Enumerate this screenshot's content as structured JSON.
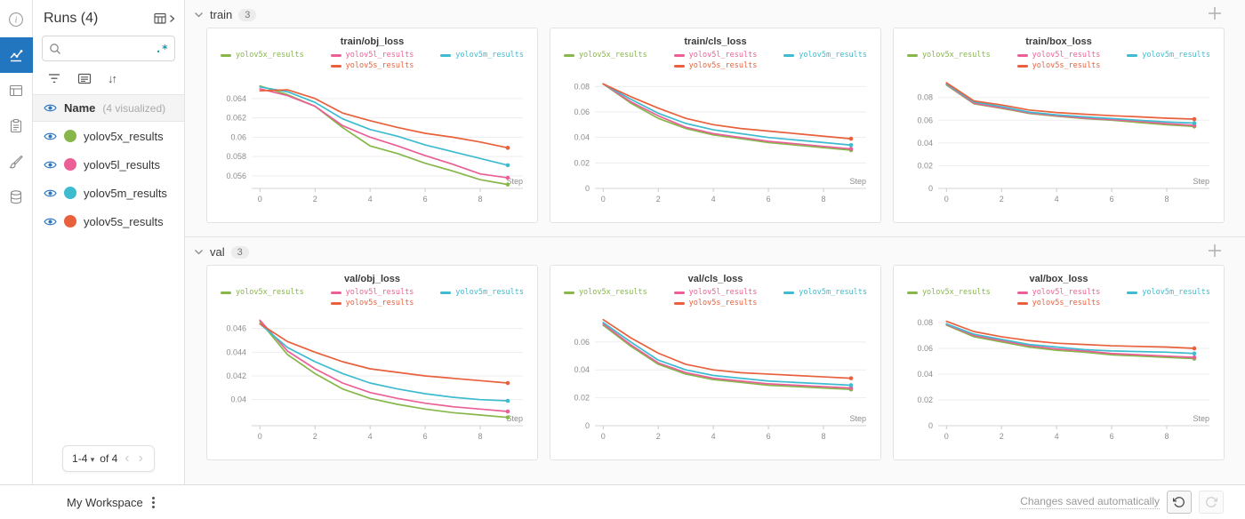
{
  "rail": {
    "items": [
      "info",
      "charts",
      "panels",
      "notes",
      "brush",
      "data"
    ]
  },
  "sidebar": {
    "title": "Runs (4)",
    "search": {
      "value": "",
      "placeholder": "",
      "regex_label": ".*"
    },
    "name_header": {
      "label": "Name",
      "suffix": "(4 visualized)"
    },
    "runs": [
      {
        "label": "yolov5x_results",
        "color": "#87b74a"
      },
      {
        "label": "yolov5l_results",
        "color": "#ec5f96"
      },
      {
        "label": "yolov5m_results",
        "color": "#3dbbcf"
      },
      {
        "label": "yolov5s_results",
        "color": "#e8603c"
      }
    ],
    "pagination": {
      "range": "1-4",
      "of": "of 4",
      "prev": "‹",
      "next": "›"
    }
  },
  "sections": [
    {
      "label": "train",
      "count": "3"
    },
    {
      "label": "val",
      "count": "3"
    }
  ],
  "footer": {
    "workspace": "My Workspace",
    "status": "Changes saved automatically"
  },
  "accent_color": "#2276c0",
  "chart_data": [
    {
      "type": "line",
      "title": "train/obj_loss",
      "xlabel": "Step",
      "x": [
        0,
        1,
        2,
        3,
        4,
        5,
        6,
        7,
        8,
        9
      ],
      "xlim": [
        -0.3,
        9.55
      ],
      "xticks": [
        0,
        2,
        4,
        6,
        8
      ],
      "ylim": [
        0.0547,
        0.0661
      ],
      "yticks": [
        0.056,
        0.058,
        0.06,
        0.062,
        0.064
      ],
      "grid": true,
      "legend_position": "top",
      "series": [
        {
          "name": "yolov5x_results",
          "color": "#87b74a",
          "values": [
            0.0653,
            0.0644,
            0.0632,
            0.061,
            0.0591,
            0.0583,
            0.0573,
            0.0565,
            0.0556,
            0.0551
          ]
        },
        {
          "name": "yolov5l_results",
          "color": "#ec5f96",
          "values": [
            0.065,
            0.0643,
            0.0632,
            0.0612,
            0.06,
            0.0591,
            0.0581,
            0.0572,
            0.0562,
            0.0558
          ]
        },
        {
          "name": "yolov5m_results",
          "color": "#3dbbcf",
          "values": [
            0.0652,
            0.0647,
            0.0636,
            0.0619,
            0.0608,
            0.0601,
            0.0592,
            0.0585,
            0.0578,
            0.0571
          ]
        },
        {
          "name": "yolov5s_results",
          "color": "#e8603c",
          "values": [
            0.0648,
            0.0649,
            0.064,
            0.0625,
            0.0617,
            0.061,
            0.0604,
            0.06,
            0.0595,
            0.0589
          ]
        }
      ]
    },
    {
      "type": "line",
      "title": "train/cls_loss",
      "xlabel": "Step",
      "x": [
        0,
        1,
        2,
        3,
        4,
        5,
        6,
        7,
        8,
        9
      ],
      "xlim": [
        -0.3,
        9.55
      ],
      "xticks": [
        0,
        2,
        4,
        6,
        8
      ],
      "ylim": [
        0,
        0.0865
      ],
      "yticks": [
        0,
        0.02,
        0.04,
        0.06,
        0.08
      ],
      "grid": true,
      "legend_position": "top",
      "series": [
        {
          "name": "yolov5x_results",
          "color": "#87b74a",
          "values": [
            0.082,
            0.067,
            0.055,
            0.047,
            0.042,
            0.039,
            0.036,
            0.034,
            0.032,
            0.03
          ]
        },
        {
          "name": "yolov5l_results",
          "color": "#ec5f96",
          "values": [
            0.082,
            0.068,
            0.057,
            0.048,
            0.043,
            0.04,
            0.037,
            0.035,
            0.033,
            0.031
          ]
        },
        {
          "name": "yolov5m_results",
          "color": "#3dbbcf",
          "values": [
            0.082,
            0.07,
            0.059,
            0.051,
            0.046,
            0.043,
            0.04,
            0.038,
            0.036,
            0.034
          ]
        },
        {
          "name": "yolov5s_results",
          "color": "#e8603c",
          "values": [
            0.082,
            0.072,
            0.063,
            0.055,
            0.05,
            0.047,
            0.045,
            0.043,
            0.041,
            0.039
          ]
        }
      ]
    },
    {
      "type": "line",
      "title": "train/box_loss",
      "xlabel": "Step",
      "x": [
        0,
        1,
        2,
        3,
        4,
        5,
        6,
        7,
        8,
        9
      ],
      "xlim": [
        -0.3,
        9.55
      ],
      "xticks": [
        0,
        2,
        4,
        6,
        8
      ],
      "ylim": [
        0,
        0.097
      ],
      "yticks": [
        0,
        0.02,
        0.04,
        0.06,
        0.08
      ],
      "grid": true,
      "legend_position": "top",
      "series": [
        {
          "name": "yolov5x_results",
          "color": "#87b74a",
          "values": [
            0.091,
            0.0745,
            0.0705,
            0.066,
            0.0635,
            0.0615,
            0.06,
            0.058,
            0.056,
            0.0545
          ]
        },
        {
          "name": "yolov5l_results",
          "color": "#ec5f96",
          "values": [
            0.0915,
            0.075,
            0.071,
            0.0665,
            0.064,
            0.062,
            0.0605,
            0.059,
            0.057,
            0.0555
          ]
        },
        {
          "name": "yolov5m_results",
          "color": "#3dbbcf",
          "values": [
            0.092,
            0.076,
            0.072,
            0.0672,
            0.0648,
            0.063,
            0.0615,
            0.06,
            0.0585,
            0.0575
          ]
        },
        {
          "name": "yolov5s_results",
          "color": "#e8603c",
          "values": [
            0.093,
            0.077,
            0.0735,
            0.069,
            0.0668,
            0.0653,
            0.064,
            0.063,
            0.0618,
            0.061
          ]
        }
      ]
    },
    {
      "type": "line",
      "title": "val/obj_loss",
      "xlabel": "Step",
      "x": [
        0,
        1,
        2,
        3,
        4,
        5,
        6,
        7,
        8,
        9
      ],
      "xlim": [
        -0.3,
        9.55
      ],
      "xticks": [
        0,
        2,
        4,
        6,
        8
      ],
      "ylim": [
        0.0378,
        0.0471
      ],
      "yticks": [
        0.04,
        0.042,
        0.044,
        0.046
      ],
      "grid": true,
      "legend_position": "top",
      "series": [
        {
          "name": "yolov5x_results",
          "color": "#87b74a",
          "values": [
            0.0466,
            0.0438,
            0.0422,
            0.0409,
            0.0401,
            0.0396,
            0.0392,
            0.0389,
            0.0387,
            0.0385
          ]
        },
        {
          "name": "yolov5l_results",
          "color": "#ec5f96",
          "values": [
            0.0467,
            0.0441,
            0.0426,
            0.0414,
            0.0406,
            0.0401,
            0.0397,
            0.0394,
            0.0392,
            0.039
          ]
        },
        {
          "name": "yolov5m_results",
          "color": "#3dbbcf",
          "values": [
            0.0464,
            0.0444,
            0.0432,
            0.0422,
            0.0414,
            0.0409,
            0.0405,
            0.0402,
            0.04,
            0.0399
          ]
        },
        {
          "name": "yolov5s_results",
          "color": "#e8603c",
          "values": [
            0.0464,
            0.0449,
            0.044,
            0.0432,
            0.0426,
            0.0423,
            0.042,
            0.0418,
            0.0416,
            0.0414
          ]
        }
      ]
    },
    {
      "type": "line",
      "title": "val/cls_loss",
      "xlabel": "Step",
      "x": [
        0,
        1,
        2,
        3,
        4,
        5,
        6,
        7,
        8,
        9
      ],
      "xlim": [
        -0.3,
        9.55
      ],
      "xticks": [
        0,
        2,
        4,
        6,
        8
      ],
      "ylim": [
        0,
        0.079
      ],
      "yticks": [
        0,
        0.02,
        0.04,
        0.06
      ],
      "grid": true,
      "legend_position": "top",
      "series": [
        {
          "name": "yolov5x_results",
          "color": "#87b74a",
          "values": [
            0.072,
            0.057,
            0.044,
            0.037,
            0.033,
            0.031,
            0.029,
            0.028,
            0.027,
            0.026
          ]
        },
        {
          "name": "yolov5l_results",
          "color": "#ec5f96",
          "values": [
            0.073,
            0.058,
            0.045,
            0.038,
            0.034,
            0.032,
            0.03,
            0.029,
            0.028,
            0.027
          ]
        },
        {
          "name": "yolov5m_results",
          "color": "#3dbbcf",
          "values": [
            0.074,
            0.06,
            0.047,
            0.04,
            0.036,
            0.034,
            0.032,
            0.031,
            0.03,
            0.029
          ]
        },
        {
          "name": "yolov5s_results",
          "color": "#e8603c",
          "values": [
            0.076,
            0.063,
            0.052,
            0.044,
            0.04,
            0.038,
            0.037,
            0.036,
            0.035,
            0.034
          ]
        }
      ]
    },
    {
      "type": "line",
      "title": "val/box_loss",
      "xlabel": "Step",
      "x": [
        0,
        1,
        2,
        3,
        4,
        5,
        6,
        7,
        8,
        9
      ],
      "xlim": [
        -0.3,
        9.55
      ],
      "xticks": [
        0,
        2,
        4,
        6,
        8
      ],
      "ylim": [
        0,
        0.0855
      ],
      "yticks": [
        0,
        0.02,
        0.04,
        0.06,
        0.08
      ],
      "grid": true,
      "legend_position": "top",
      "series": [
        {
          "name": "yolov5x_results",
          "color": "#87b74a",
          "values": [
            0.078,
            0.069,
            0.065,
            0.061,
            0.0585,
            0.057,
            0.055,
            0.054,
            0.053,
            0.052
          ]
        },
        {
          "name": "yolov5l_results",
          "color": "#ec5f96",
          "values": [
            0.0785,
            0.07,
            0.066,
            0.062,
            0.0595,
            0.058,
            0.056,
            0.055,
            0.054,
            0.053
          ]
        },
        {
          "name": "yolov5m_results",
          "color": "#3dbbcf",
          "values": [
            0.079,
            0.071,
            0.067,
            0.063,
            0.061,
            0.059,
            0.058,
            0.0575,
            0.057,
            0.056
          ]
        },
        {
          "name": "yolov5s_results",
          "color": "#e8603c",
          "values": [
            0.081,
            0.073,
            0.069,
            0.066,
            0.064,
            0.063,
            0.062,
            0.0615,
            0.061,
            0.06
          ]
        }
      ]
    }
  ]
}
